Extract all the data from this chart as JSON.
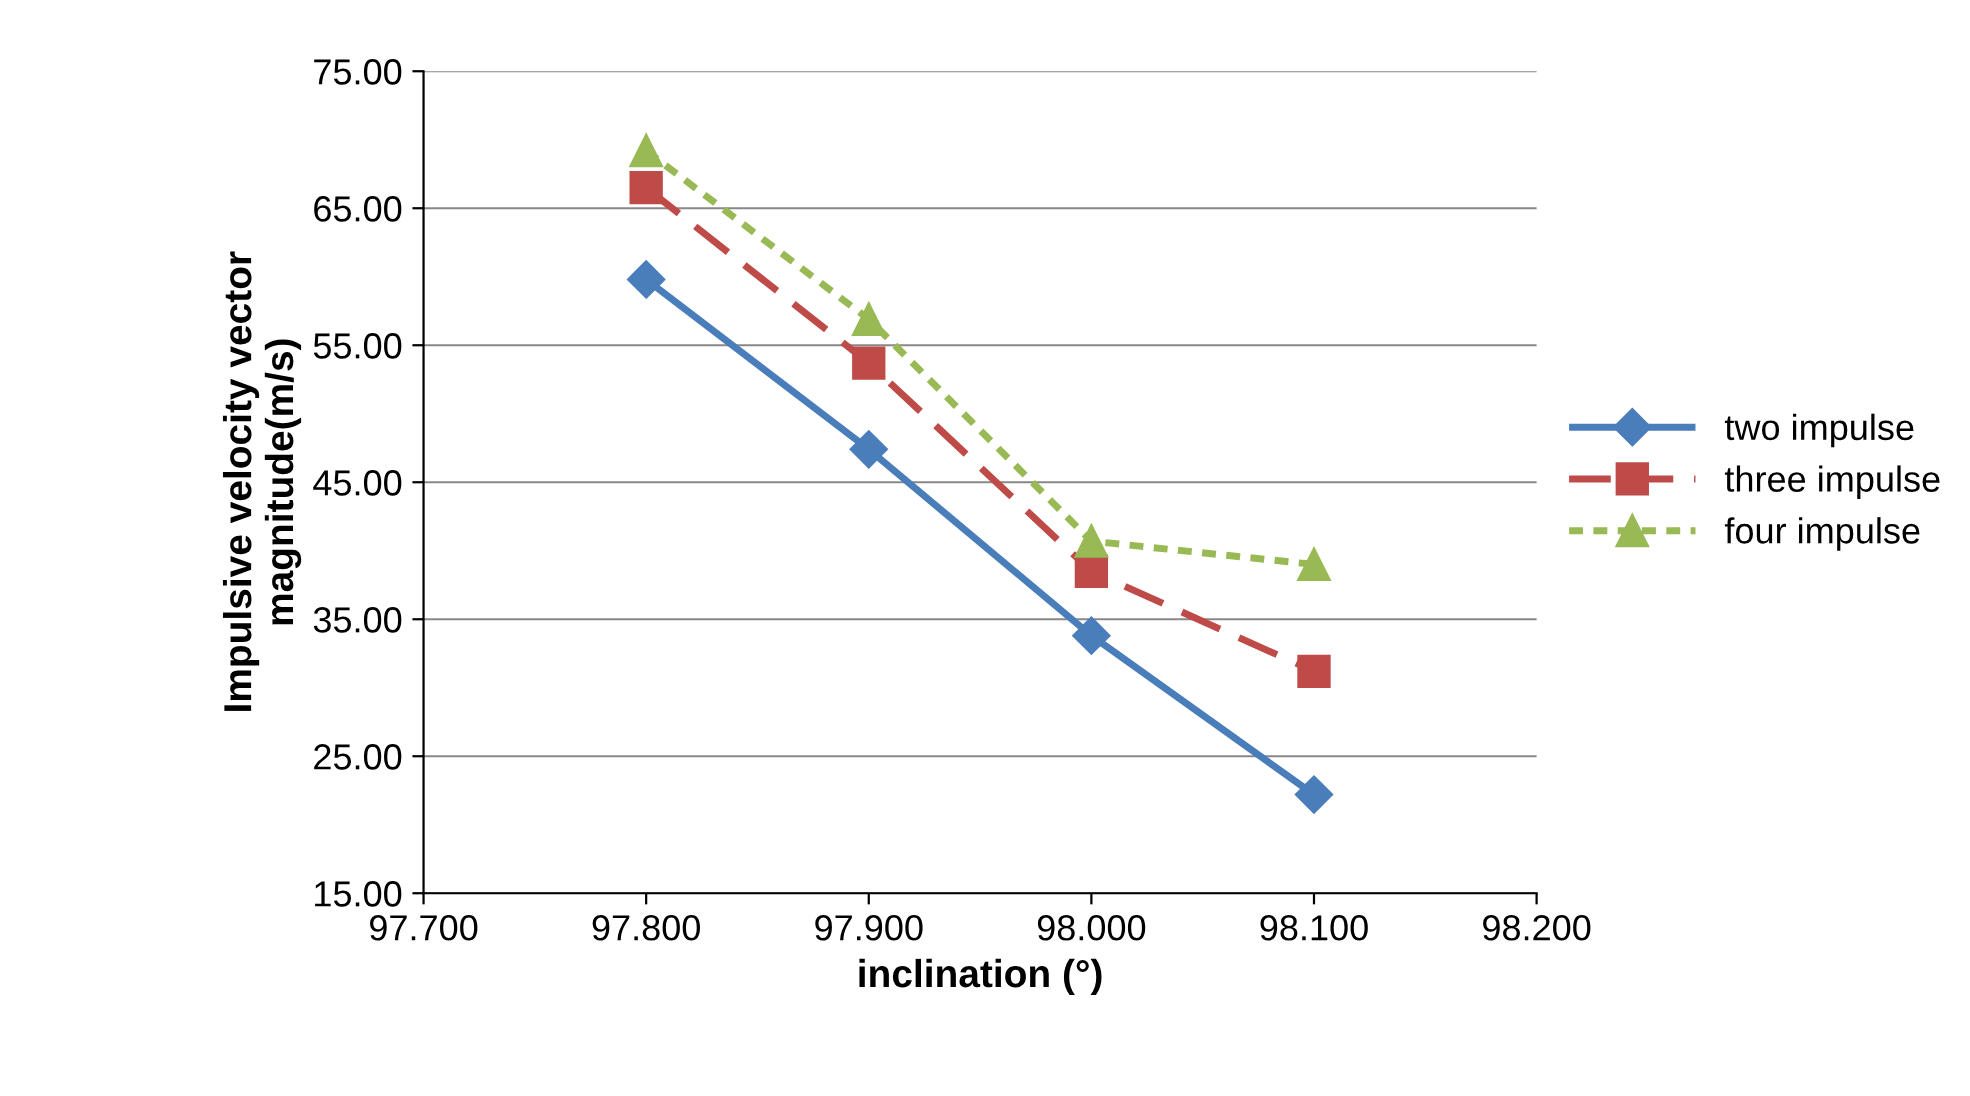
{
  "chart_data": {
    "type": "line",
    "xlabel": "inclination (°)",
    "ylabel": "Impulsive velocity vector\nmagnitude(m/s)",
    "x": [
      97.8,
      97.9,
      98.0,
      98.1
    ],
    "series": [
      {
        "name": "two impulse",
        "color": "#4a7ebb",
        "marker": "diamond",
        "line_style": "solid",
        "values": [
          59.8,
          47.4,
          33.8,
          22.2
        ]
      },
      {
        "name": "three impulse",
        "color": "#be4b48",
        "marker": "square",
        "line_style": "dashed",
        "values": [
          66.5,
          53.7,
          38.5,
          31.2
        ]
      },
      {
        "name": "four impulse",
        "color": "#98b954",
        "marker": "triangle",
        "line_style": "dotted",
        "values": [
          69.2,
          56.9,
          40.7,
          39.0
        ]
      }
    ],
    "xlim": [
      97.7,
      98.2
    ],
    "xticks": [
      {
        "value": 97.7,
        "label": "97.700"
      },
      {
        "value": 97.8,
        "label": "97.800"
      },
      {
        "value": 97.9,
        "label": "97.900"
      },
      {
        "value": 98.0,
        "label": "98.000"
      },
      {
        "value": 98.1,
        "label": "98.100"
      },
      {
        "value": 98.2,
        "label": "98.200"
      }
    ],
    "ylim": [
      15,
      75
    ],
    "yticks": [
      {
        "value": 15,
        "label": "15.00"
      },
      {
        "value": 25,
        "label": "25.00"
      },
      {
        "value": 35,
        "label": "35.00"
      },
      {
        "value": 45,
        "label": "45.00"
      },
      {
        "value": 55,
        "label": "55.00"
      },
      {
        "value": 65,
        "label": "65.00"
      },
      {
        "value": 75,
        "label": "75.00"
      }
    ],
    "grid": "y",
    "legend": "right"
  }
}
